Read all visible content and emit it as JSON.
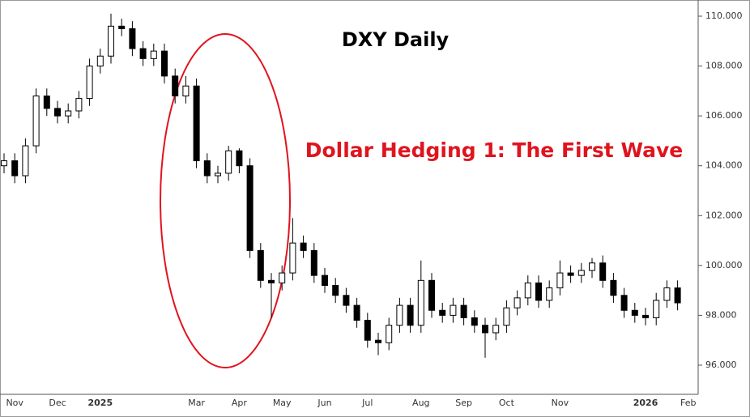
{
  "chart_data": {
    "type": "candlestick",
    "title": "DXY Daily",
    "annotation": "Dollar Hedging 1: The First Wave",
    "categories": [
      null,
      "Nov",
      null,
      null,
      null,
      "Dec",
      null,
      null,
      null,
      "2025",
      null,
      null,
      null,
      null,
      null,
      null,
      null,
      null,
      "Mar",
      null,
      null,
      null,
      "Apr",
      null,
      null,
      null,
      "May",
      null,
      null,
      null,
      "Jun",
      null,
      null,
      null,
      "Jul",
      null,
      null,
      null,
      null,
      "Aug",
      null,
      null,
      null,
      "Sep",
      null,
      null,
      null,
      "Oct",
      null,
      null,
      null,
      null,
      "Nov",
      null,
      null,
      null,
      null,
      null,
      null,
      null,
      "2026",
      null,
      null,
      null,
      "Feb"
    ],
    "open": [
      104.0,
      104.2,
      103.6,
      104.8,
      106.8,
      106.3,
      106.0,
      106.2,
      106.7,
      108.0,
      108.4,
      109.6,
      109.5,
      108.7,
      108.3,
      108.6,
      107.6,
      106.8,
      107.2,
      104.2,
      103.6,
      103.7,
      104.6,
      104.0,
      100.6,
      99.4,
      99.3,
      99.7,
      100.9,
      100.6,
      99.6,
      99.2,
      98.8,
      98.4,
      97.8,
      97.0,
      96.9,
      97.6,
      98.4,
      97.6,
      99.4,
      98.2,
      98.0,
      98.4,
      97.9,
      97.6,
      97.3,
      97.6,
      98.3,
      98.7,
      99.3,
      98.6,
      99.1,
      99.7,
      99.6,
      99.8,
      100.1,
      99.4,
      98.8,
      98.2,
      98.0,
      97.9,
      98.6,
      99.1,
      null
    ],
    "high": [
      104.5,
      104.5,
      105.1,
      107.1,
      107.1,
      106.6,
      106.5,
      107.0,
      108.3,
      108.7,
      110.1,
      109.9,
      109.8,
      109.0,
      108.9,
      108.9,
      107.9,
      107.6,
      107.5,
      104.5,
      104.0,
      104.8,
      104.7,
      104.3,
      100.9,
      99.7,
      100.0,
      101.9,
      101.2,
      100.9,
      99.9,
      99.5,
      99.1,
      98.7,
      98.1,
      97.3,
      97.9,
      98.7,
      98.7,
      100.2,
      99.7,
      98.5,
      98.7,
      98.7,
      98.2,
      97.9,
      97.9,
      98.6,
      99.0,
      99.6,
      99.6,
      99.4,
      100.2,
      100.0,
      100.1,
      100.3,
      100.4,
      99.7,
      99.1,
      98.5,
      98.3,
      98.9,
      99.4,
      99.4,
      null
    ],
    "low": [
      103.7,
      103.3,
      103.3,
      104.5,
      106.0,
      105.7,
      105.7,
      105.9,
      106.4,
      107.7,
      108.1,
      109.2,
      108.4,
      108.0,
      108.0,
      107.3,
      106.5,
      106.5,
      103.9,
      103.3,
      103.3,
      103.4,
      103.7,
      100.3,
      99.1,
      97.9,
      99.0,
      99.4,
      100.3,
      99.3,
      98.9,
      98.5,
      98.1,
      97.5,
      96.7,
      96.4,
      96.6,
      97.3,
      97.3,
      97.3,
      97.9,
      97.7,
      97.7,
      97.6,
      97.3,
      96.3,
      97.0,
      97.3,
      98.0,
      98.4,
      98.3,
      98.3,
      98.8,
      99.3,
      99.3,
      99.5,
      99.1,
      98.5,
      97.9,
      97.7,
      97.6,
      97.6,
      98.3,
      98.2,
      null
    ],
    "close": [
      104.2,
      103.6,
      104.8,
      106.8,
      106.3,
      106.0,
      106.2,
      106.7,
      108.0,
      108.4,
      109.6,
      109.5,
      108.7,
      108.3,
      108.6,
      107.6,
      106.8,
      107.2,
      104.2,
      103.6,
      103.7,
      104.6,
      104.0,
      100.6,
      99.4,
      99.3,
      99.7,
      100.9,
      100.6,
      99.6,
      99.2,
      98.8,
      98.4,
      97.8,
      97.0,
      96.9,
      97.6,
      98.4,
      97.6,
      99.4,
      98.2,
      98.0,
      98.4,
      97.9,
      97.6,
      97.3,
      97.6,
      98.3,
      98.7,
      99.3,
      98.6,
      99.1,
      99.7,
      99.6,
      99.8,
      100.1,
      99.4,
      98.8,
      98.2,
      98.0,
      97.9,
      98.6,
      99.1,
      98.5,
      null
    ],
    "up_color": "#ffffff",
    "down_color": "#000000",
    "ylim": [
      94.83,
      110.65
    ],
    "yticks": [
      {
        "value": 96,
        "label": "96.000"
      },
      {
        "value": 98,
        "label": "98.000"
      },
      {
        "value": 100,
        "label": "100.000"
      },
      {
        "value": 102,
        "label": "102.000"
      },
      {
        "value": 104,
        "label": "104.000"
      },
      {
        "value": 106,
        "label": "106.000"
      },
      {
        "value": 108,
        "label": "108.000"
      },
      {
        "value": 110,
        "label": "110.000"
      }
    ],
    "annotation_color": "#e0141e"
  }
}
